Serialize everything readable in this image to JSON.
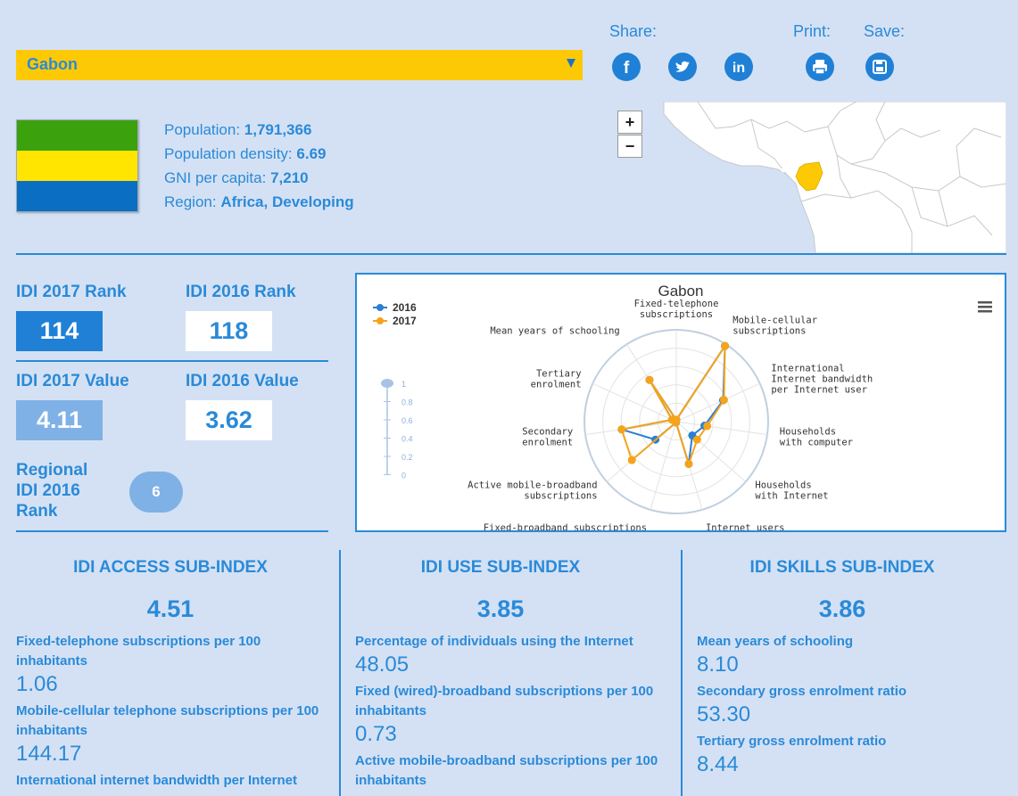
{
  "country_select": {
    "value": "Gabon"
  },
  "toolbar": {
    "share_label": "Share:",
    "print_label": "Print:",
    "save_label": "Save:"
  },
  "flag": {
    "colors": [
      "#3ba10d",
      "#ffe500",
      "#0a6fc2"
    ]
  },
  "info": {
    "population_label": "Population: ",
    "population": "1,791,366",
    "density_label": "Population density: ",
    "density": "6.69",
    "gni_label": "GNI per capita: ",
    "gni": "7,210",
    "region_label": "Region: ",
    "region": "Africa, Developing"
  },
  "map": {
    "zoom_in": "+",
    "zoom_out": "−",
    "highlight_color": "#fdc904"
  },
  "ranks": {
    "idi2017_rank_label": "IDI 2017 Rank",
    "idi2017_rank": "114",
    "idi2016_rank_label": "IDI 2016 Rank",
    "idi2016_rank": "118",
    "idi2017_value_label": "IDI 2017 Value",
    "idi2017_value": "4.11",
    "idi2016_value_label": "IDI 2016 Value",
    "idi2016_value": "3.62",
    "regional_label_1": "Regional",
    "regional_label_2": "IDI 2016",
    "regional_label_3": "Rank",
    "regional_rank": "6"
  },
  "chart_data": {
    "type": "radar",
    "title": "Gabon",
    "legend_position": "top-left",
    "axis_range": [
      0,
      1
    ],
    "axis_ticks": [
      "1",
      "0.8",
      "0.6",
      "0.4",
      "0.2",
      "0"
    ],
    "categories": [
      "Fixed-telephone subscriptions",
      "Mobile-cellular subscriptions",
      "International Internet bandwidth per Internet user",
      "Households with computer",
      "Households with Internet",
      "Internet users",
      "Fixed-broadband subscriptions",
      "Active mobile-broadband subscriptions",
      "Secondary enrolment",
      "Tertiary enrolment",
      "Mean years of schooling"
    ],
    "category_label_lines": [
      [
        "Fixed-telephone",
        "subscriptions"
      ],
      [
        "Mobile-cellular",
        "subscriptions"
      ],
      [
        "International",
        "Internet bandwidth",
        "per Internet user"
      ],
      [
        "Households",
        "with computer"
      ],
      [
        "Households",
        "with Internet"
      ],
      [
        "Internet users"
      ],
      [
        "Fixed-broadband subscriptions"
      ],
      [
        "Active mobile-broadband",
        "subscriptions"
      ],
      [
        "Secondary",
        "enrolment"
      ],
      [
        "Tertiary",
        "enrolment"
      ],
      [
        "Mean years of schooling"
      ]
    ],
    "series": [
      {
        "name": "2016",
        "color": "#2a7fd4",
        "values": [
          0.02,
          0.98,
          0.56,
          0.31,
          0.23,
          0.48,
          0.01,
          0.3,
          0.6,
          0.05,
          0.54
        ]
      },
      {
        "name": "2017",
        "color": "#f5a31a",
        "values": [
          0.02,
          0.98,
          0.57,
          0.34,
          0.3,
          0.48,
          0.01,
          0.64,
          0.6,
          0.05,
          0.54
        ]
      }
    ]
  },
  "subindex": {
    "access": {
      "title": "IDI ACCESS SUB-INDEX",
      "value": "4.51",
      "items": [
        {
          "label": "Fixed-telephone subscriptions per 100 inhabitants",
          "value": "1.06"
        },
        {
          "label": "Mobile-cellular telephone subscriptions per 100 inhabitants",
          "value": "144.17"
        },
        {
          "label": "International internet bandwidth per Internet",
          "value": ""
        }
      ]
    },
    "use": {
      "title": "IDI USE SUB-INDEX",
      "value": "3.85",
      "items": [
        {
          "label": "Percentage of individuals using the Internet",
          "value": "48.05"
        },
        {
          "label": "Fixed (wired)-broadband subscriptions per 100 inhabitants",
          "value": "0.73"
        },
        {
          "label": "Active mobile-broadband subscriptions per 100 inhabitants",
          "value": ""
        }
      ]
    },
    "skills": {
      "title": "IDI SKILLS SUB-INDEX",
      "value": "3.86",
      "items": [
        {
          "label": "Mean years of schooling",
          "value": "8.10"
        },
        {
          "label": "Secondary gross enrolment ratio",
          "value": "53.30"
        },
        {
          "label": "Tertiary gross enrolment ratio",
          "value": "8.44"
        }
      ]
    }
  }
}
